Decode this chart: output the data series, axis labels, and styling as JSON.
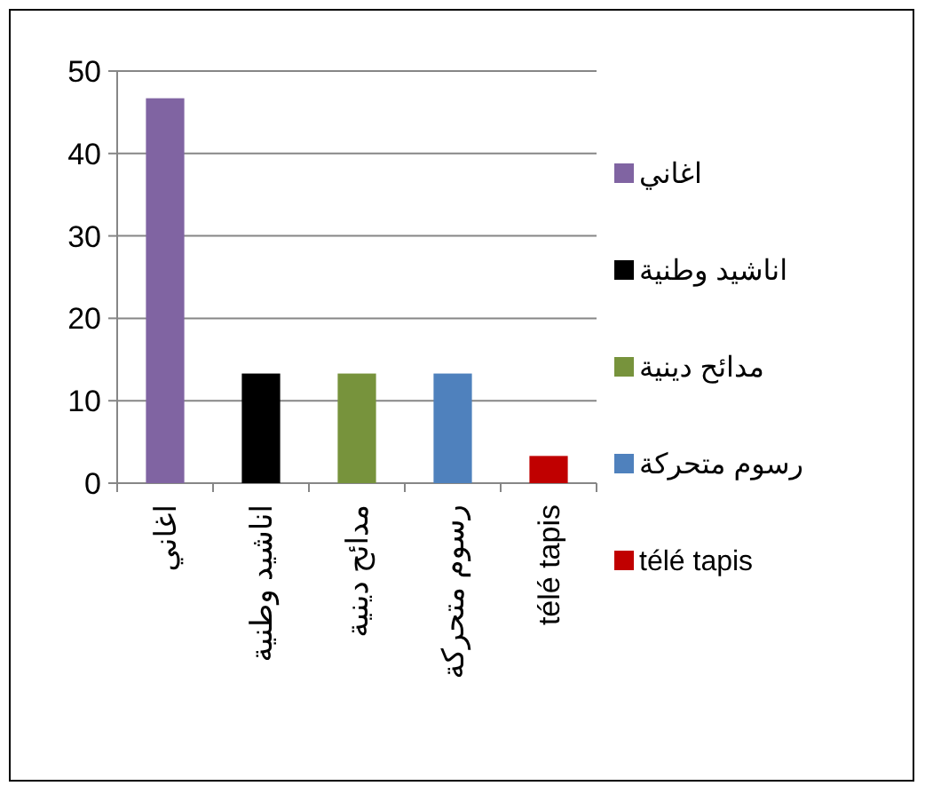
{
  "chart_data": {
    "type": "bar",
    "categories": [
      "اغاني",
      "اناشيد وطنية",
      "مدائح دينية",
      "رسوم متحركة",
      "télé tapis"
    ],
    "series": [
      {
        "name": "اغاني",
        "color": "#8064a2",
        "values": [
          46.7,
          null,
          null,
          null,
          null
        ]
      },
      {
        "name": "اناشيد وطنية",
        "color": "#000000",
        "values": [
          null,
          13.3,
          null,
          null,
          null
        ]
      },
      {
        "name": "مدائح دينية",
        "color": "#77933c",
        "values": [
          null,
          null,
          13.3,
          null,
          null
        ]
      },
      {
        "name": "رسوم متحركة",
        "color": "#4f81bd",
        "values": [
          null,
          null,
          null,
          13.3,
          null
        ]
      },
      {
        "name": "télé tapis",
        "color": "#c00000",
        "values": [
          null,
          null,
          null,
          null,
          3.3
        ]
      }
    ],
    "ylim": [
      0,
      50
    ],
    "yticks": [
      0,
      10,
      20,
      30,
      40,
      50
    ],
    "grid": "y",
    "legend": "right"
  }
}
